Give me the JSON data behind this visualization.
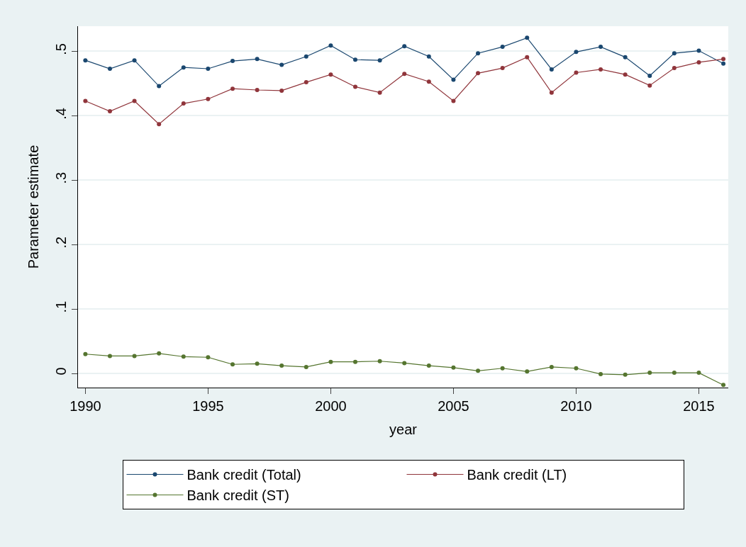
{
  "chart_data": {
    "type": "line",
    "xlabel": "year",
    "ylabel": "Parameter estimate",
    "x": [
      1990,
      1991,
      1992,
      1993,
      1994,
      1995,
      1996,
      1997,
      1998,
      1999,
      2000,
      2001,
      2002,
      2003,
      2004,
      2005,
      2006,
      2007,
      2008,
      2009,
      2010,
      2011,
      2012,
      2013,
      2014,
      2015,
      2016
    ],
    "series": [
      {
        "name": "Bank credit (Total)",
        "color": "#1a476f",
        "values": [
          0.486,
          0.473,
          0.486,
          0.446,
          0.475,
          0.473,
          0.485,
          0.488,
          0.479,
          0.492,
          0.509,
          0.487,
          0.486,
          0.508,
          0.492,
          0.456,
          0.497,
          0.507,
          0.521,
          0.472,
          0.499,
          0.507,
          0.491,
          0.462,
          0.497,
          0.501,
          0.481
        ]
      },
      {
        "name": "Bank credit (LT)",
        "color": "#90353b",
        "values": [
          0.423,
          0.407,
          0.423,
          0.387,
          0.419,
          0.426,
          0.442,
          0.44,
          0.439,
          0.452,
          0.464,
          0.445,
          0.436,
          0.465,
          0.453,
          0.423,
          0.466,
          0.474,
          0.491,
          0.436,
          0.467,
          0.472,
          0.464,
          0.447,
          0.474,
          0.483,
          0.488
        ]
      },
      {
        "name": "Bank credit (ST)",
        "color": "#55752f",
        "values": [
          0.03,
          0.027,
          0.027,
          0.031,
          0.026,
          0.025,
          0.014,
          0.015,
          0.012,
          0.01,
          0.018,
          0.018,
          0.019,
          0.016,
          0.012,
          0.009,
          0.004,
          0.008,
          0.003,
          0.01,
          0.008,
          -0.001,
          -0.002,
          0.001,
          0.001,
          0.001,
          -0.018
        ]
      }
    ],
    "xlim": [
      1989.7,
      2016.2
    ],
    "xticks": [
      1990,
      1995,
      2000,
      2005,
      2010,
      2015
    ],
    "ylim": [
      -0.022,
      0.539
    ],
    "yticks": [
      0,
      {
        "value": 0.1,
        "label": ".1"
      },
      {
        "value": 0.2,
        "label": ".2"
      },
      {
        "value": 0.3,
        "label": ".3"
      },
      {
        "value": 0.4,
        "label": ".4"
      },
      {
        "value": 0.5,
        "label": ".5"
      }
    ],
    "grid": "y",
    "legend": "bottom",
    "marker": "circle",
    "line_style": "solid"
  }
}
